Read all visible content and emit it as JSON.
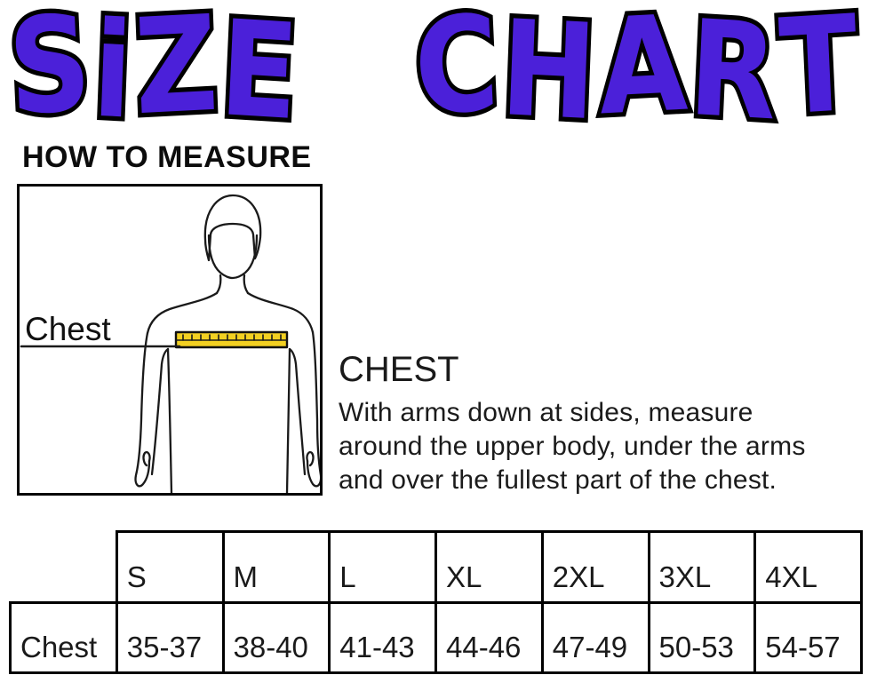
{
  "title": {
    "text": "SiZE CHART",
    "word1": "SiZE",
    "word2": "CHART",
    "letter_color": "#4b20d9",
    "outline_color": "#000000"
  },
  "how_to_measure": {
    "heading": "HOW TO MEASURE"
  },
  "figure": {
    "chest_label": "Chest",
    "tape_color": "#f2d022",
    "outline_color": "#1a1a1a"
  },
  "chest_section": {
    "heading": "CHEST",
    "description_lines": [
      "With arms down at sides, measure",
      "around the upper body, under the arms",
      "and over the fullest part of the chest."
    ]
  },
  "size_table": {
    "row_header": "Chest",
    "columns": [
      "S",
      "M",
      "L",
      "XL",
      "2XL",
      "3XL",
      "4XL"
    ],
    "chest_values": [
      "35-37",
      "38-40",
      "41-43",
      "44-46",
      "47-49",
      "50-53",
      "54-57"
    ]
  }
}
